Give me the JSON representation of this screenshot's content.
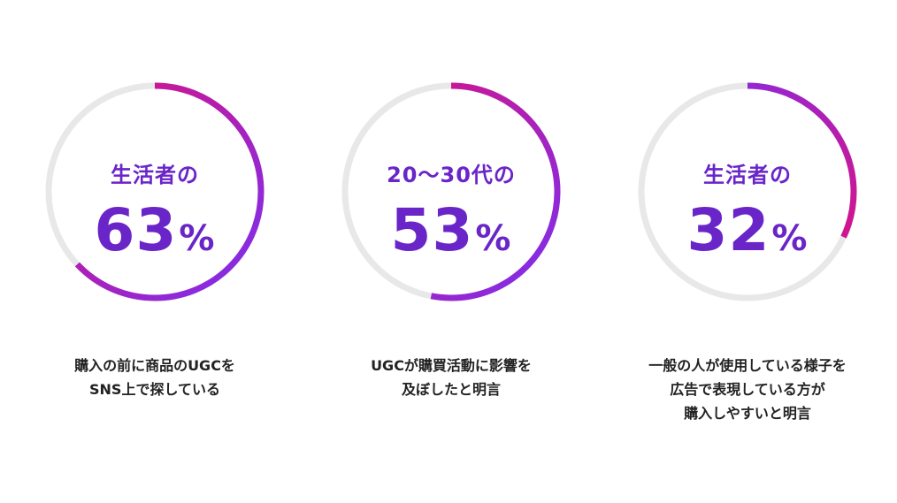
{
  "colors": {
    "track": "#e8e8e8",
    "gradient_start": "#7b2ff0",
    "gradient_end": "#e0117c",
    "text_accent": "#6a25c8"
  },
  "stats": [
    {
      "label": "生活者の",
      "value": "63",
      "percent": 63,
      "unit": "%",
      "caption": [
        "購入の前に商品のUGCを",
        "SNS上で探している"
      ]
    },
    {
      "label": "20～30代の",
      "value": "53",
      "percent": 53,
      "unit": "%",
      "caption": [
        "UGCが購買活動に影響を",
        "及ぼしたと明言"
      ]
    },
    {
      "label": "生活者の",
      "value": "32",
      "percent": 32,
      "unit": "%",
      "caption": [
        "一般の人が使用している様子を",
        "広告で表現している方が",
        "購入しやすいと明言"
      ]
    }
  ]
}
